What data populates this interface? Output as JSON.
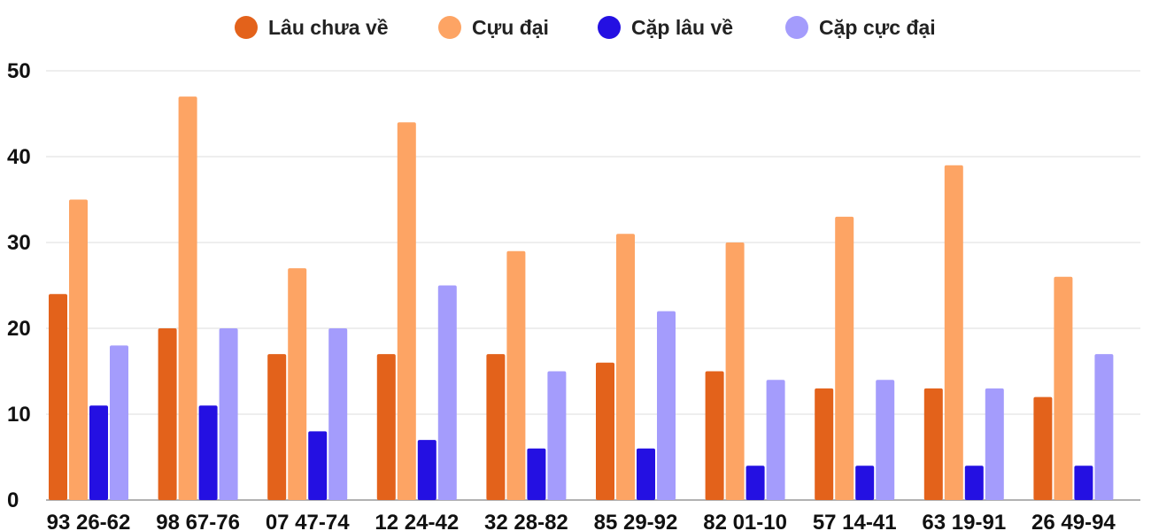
{
  "chart_data": {
    "type": "bar",
    "title": "",
    "xlabel": "",
    "ylabel": "",
    "ylim": [
      0,
      50
    ],
    "yticks": [
      0,
      10,
      20,
      30,
      40,
      50
    ],
    "grid": true,
    "legend_position": "top",
    "categories": [
      "93 26-62",
      "98 67-76",
      "07 47-74",
      "12 24-42",
      "32 28-82",
      "85 29-92",
      "82 01-10",
      "57 14-41",
      "63 19-91",
      "26 49-94"
    ],
    "series": [
      {
        "name": "Lâu chưa về",
        "color": "#e3621b",
        "values": [
          24,
          20,
          17,
          17,
          17,
          16,
          15,
          13,
          13,
          12
        ]
      },
      {
        "name": "Cựu đại",
        "color": "#fda464",
        "values": [
          35,
          47,
          27,
          44,
          29,
          31,
          30,
          33,
          39,
          26
        ]
      },
      {
        "name": "Cặp lâu về",
        "color": "#2410e2",
        "values": [
          11,
          11,
          8,
          7,
          6,
          6,
          4,
          4,
          4,
          4
        ]
      },
      {
        "name": "Cặp cực đại",
        "color": "#a49cfc",
        "values": [
          18,
          20,
          20,
          25,
          15,
          22,
          14,
          14,
          13,
          17
        ]
      }
    ]
  }
}
